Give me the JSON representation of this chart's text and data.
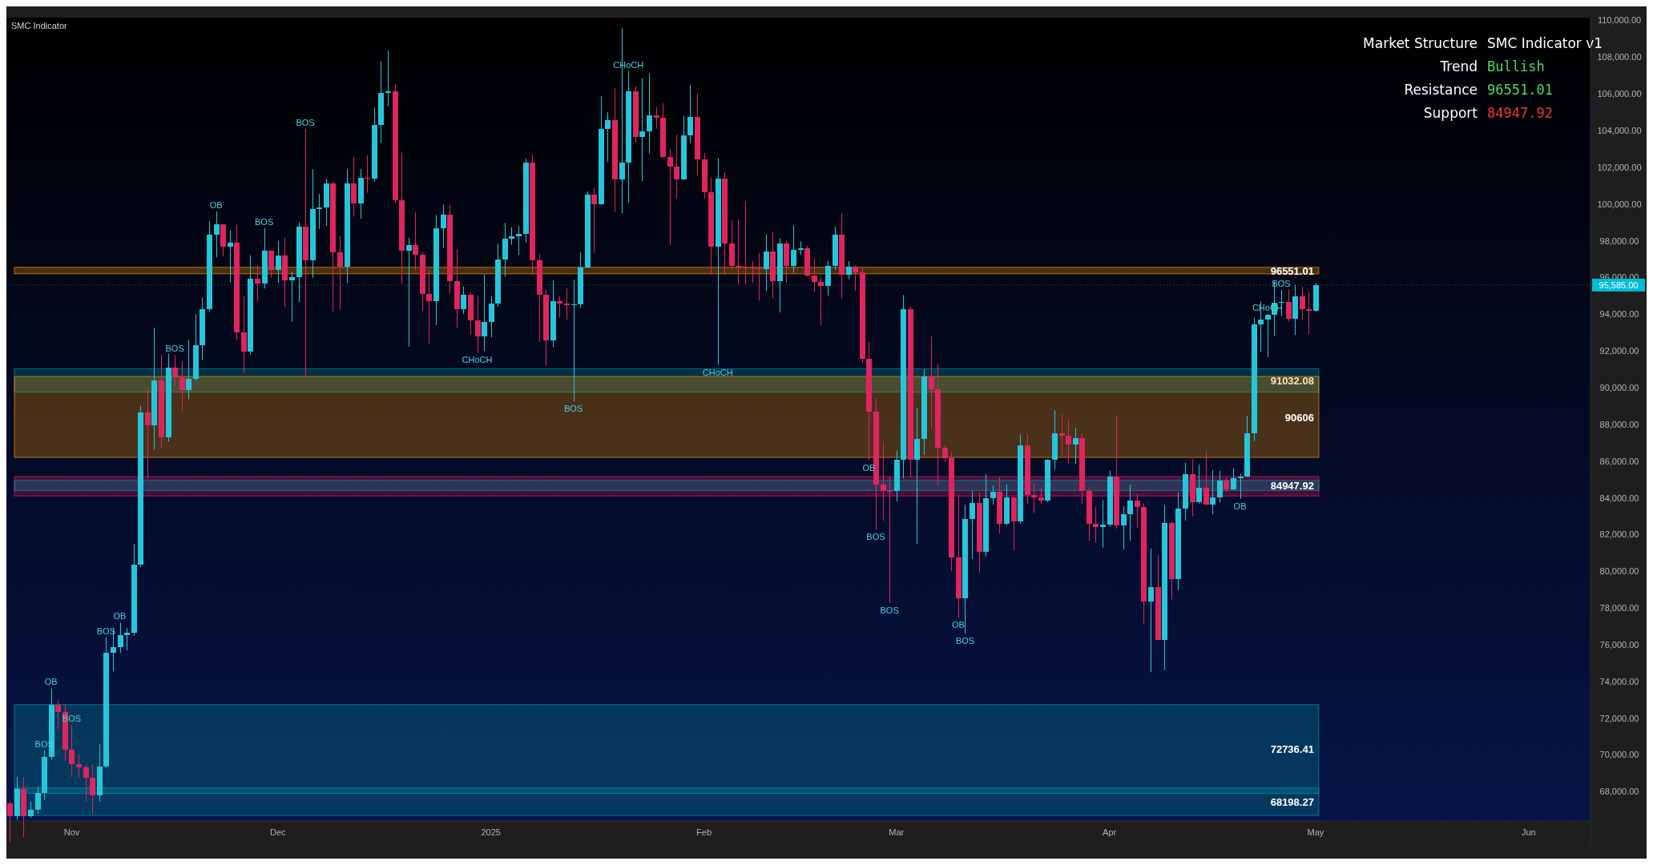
{
  "chart_data": {
    "type": "candlestick",
    "subtitle": "SMC Indicator",
    "x": [
      "2024-10-23",
      "2024-10-24",
      "2024-10-25",
      "2024-10-26",
      "2024-10-27",
      "2024-10-28",
      "2024-10-29",
      "2024-10-30",
      "2024-10-31",
      "2024-11-01",
      "2024-11-02",
      "2024-11-03",
      "2024-11-04",
      "2024-11-05",
      "2024-11-06",
      "2024-11-07",
      "2024-11-08",
      "2024-11-09",
      "2024-11-10",
      "2024-11-11",
      "2024-11-12",
      "2024-11-13",
      "2024-11-14",
      "2024-11-15",
      "2024-11-16",
      "2024-11-17",
      "2024-11-18",
      "2024-11-19",
      "2024-11-20",
      "2024-11-21",
      "2024-11-22",
      "2024-11-23",
      "2024-11-24",
      "2024-11-25",
      "2024-11-26",
      "2024-11-27",
      "2024-11-28",
      "2024-11-29",
      "2024-11-30",
      "2024-12-01",
      "2024-12-02",
      "2024-12-03",
      "2024-12-04",
      "2024-12-05",
      "2024-12-06",
      "2024-12-07",
      "2024-12-08",
      "2024-12-09",
      "2024-12-10",
      "2024-12-11",
      "2024-12-12",
      "2024-12-13",
      "2024-12-14",
      "2024-12-15",
      "2024-12-16",
      "2024-12-17",
      "2024-12-18",
      "2024-12-19",
      "2024-12-20",
      "2024-12-21",
      "2024-12-22",
      "2024-12-23",
      "2024-12-24",
      "2024-12-25",
      "2024-12-26",
      "2024-12-27",
      "2024-12-28",
      "2024-12-29",
      "2024-12-30",
      "2024-12-31",
      "2025-01-01",
      "2025-01-02",
      "2025-01-03",
      "2025-01-04",
      "2025-01-05",
      "2025-01-06",
      "2025-01-07",
      "2025-01-08",
      "2025-01-09",
      "2025-01-10",
      "2025-01-11",
      "2025-01-12",
      "2025-01-13",
      "2025-01-14",
      "2025-01-15",
      "2025-01-16",
      "2025-01-17",
      "2025-01-18",
      "2025-01-19",
      "2025-01-20",
      "2025-01-21",
      "2025-01-22",
      "2025-01-23",
      "2025-01-24",
      "2025-01-25",
      "2025-01-26",
      "2025-01-27",
      "2025-01-28",
      "2025-01-29",
      "2025-01-30",
      "2025-01-31",
      "2025-02-01",
      "2025-02-02",
      "2025-02-03",
      "2025-02-04",
      "2025-02-05",
      "2025-02-06",
      "2025-02-07",
      "2025-02-08",
      "2025-02-09",
      "2025-02-10",
      "2025-02-11",
      "2025-02-12",
      "2025-02-13",
      "2025-02-14",
      "2025-02-15",
      "2025-02-16",
      "2025-02-17",
      "2025-02-18",
      "2025-02-19",
      "2025-02-20",
      "2025-02-21",
      "2025-02-22",
      "2025-02-23",
      "2025-02-24",
      "2025-02-25",
      "2025-02-26",
      "2025-02-27",
      "2025-02-28",
      "2025-03-01",
      "2025-03-02",
      "2025-03-03",
      "2025-03-04",
      "2025-03-05",
      "2025-03-06",
      "2025-03-07",
      "2025-03-08",
      "2025-03-09",
      "2025-03-10",
      "2025-03-11",
      "2025-03-12",
      "2025-03-13",
      "2025-03-14",
      "2025-03-15",
      "2025-03-16",
      "2025-03-17",
      "2025-03-18",
      "2025-03-19",
      "2025-03-20",
      "2025-03-21",
      "2025-03-22",
      "2025-03-23",
      "2025-03-24",
      "2025-03-25",
      "2025-03-26",
      "2025-03-27",
      "2025-03-28",
      "2025-03-29",
      "2025-03-30",
      "2025-03-31",
      "2025-04-01",
      "2025-04-02",
      "2025-04-03",
      "2025-04-04",
      "2025-04-05",
      "2025-04-06",
      "2025-04-07",
      "2025-04-08",
      "2025-04-09",
      "2025-04-10",
      "2025-04-11",
      "2025-04-12",
      "2025-04-13",
      "2025-04-14",
      "2025-04-15",
      "2025-04-16",
      "2025-04-17",
      "2025-04-18",
      "2025-04-19",
      "2025-04-20",
      "2025-04-21",
      "2025-04-22",
      "2025-04-23",
      "2025-04-24",
      "2025-04-25",
      "2025-04-26",
      "2025-04-27",
      "2025-04-28",
      "2025-04-29",
      "2025-04-30",
      "2025-05-01"
    ],
    "ohlc": [
      [
        67380,
        67470,
        65260,
        66650
      ],
      [
        66650,
        68800,
        66450,
        68160
      ],
      [
        68160,
        68770,
        65520,
        66640
      ],
      [
        66640,
        67450,
        66580,
        67010
      ],
      [
        67010,
        68300,
        66800,
        67930
      ],
      [
        67930,
        70250,
        67560,
        69910
      ],
      [
        69910,
        73620,
        69730,
        72720
      ],
      [
        72720,
        72980,
        71400,
        72340
      ],
      [
        72340,
        72750,
        69680,
        70280
      ],
      [
        70280,
        71630,
        68800,
        69480
      ],
      [
        69480,
        70000,
        68790,
        69330
      ],
      [
        69330,
        69450,
        67460,
        68740
      ],
      [
        68740,
        69480,
        66830,
        67800
      ],
      [
        67800,
        70580,
        67460,
        69370
      ],
      [
        69370,
        76400,
        69300,
        75570
      ],
      [
        75570,
        76850,
        74550,
        75860
      ],
      [
        75860,
        77200,
        75560,
        76510
      ],
      [
        76510,
        76900,
        75700,
        76670
      ],
      [
        76670,
        81500,
        76490,
        80370
      ],
      [
        80370,
        89000,
        80220,
        88650
      ],
      [
        88650,
        89950,
        85080,
        87950
      ],
      [
        87950,
        93270,
        86620,
        90380
      ],
      [
        90380,
        91790,
        86670,
        87300
      ],
      [
        87300,
        91850,
        87070,
        91070
      ],
      [
        91070,
        91780,
        90060,
        90610
      ],
      [
        90610,
        91440,
        88720,
        89850
      ],
      [
        89850,
        92590,
        89380,
        90460
      ],
      [
        90460,
        94000,
        90380,
        92300
      ],
      [
        92300,
        94900,
        91500,
        94290
      ],
      [
        94290,
        99070,
        94140,
        98350
      ],
      [
        98350,
        99590,
        97100,
        98890
      ],
      [
        98890,
        98890,
        97150,
        97670
      ],
      [
        97670,
        98560,
        95730,
        97900
      ],
      [
        97900,
        98870,
        92600,
        93010
      ],
      [
        93010,
        94970,
        90790,
        91970
      ],
      [
        91970,
        97210,
        91800,
        95950
      ],
      [
        95950,
        96650,
        94690,
        95650
      ],
      [
        95650,
        98690,
        95400,
        97460
      ],
      [
        97460,
        97470,
        96000,
        96410
      ],
      [
        96410,
        98000,
        95700,
        97190
      ],
      [
        97190,
        98170,
        94390,
        95840
      ],
      [
        95840,
        96300,
        93580,
        96000
      ],
      [
        96000,
        99000,
        94660,
        98770
      ],
      [
        98770,
        104090,
        90500,
        96940
      ],
      [
        96940,
        101900,
        95980,
        99740
      ],
      [
        99740,
        100550,
        98650,
        99830
      ],
      [
        99830,
        101350,
        98800,
        101110
      ],
      [
        101110,
        101220,
        94150,
        97360
      ],
      [
        97360,
        98270,
        94260,
        96590
      ],
      [
        96590,
        101890,
        95680,
        101120
      ],
      [
        101120,
        102540,
        99310,
        100040
      ],
      [
        100040,
        101900,
        99200,
        101420
      ],
      [
        101420,
        102650,
        100610,
        101370
      ],
      [
        101370,
        105250,
        101230,
        104300
      ],
      [
        104300,
        107780,
        103330,
        106060
      ],
      [
        106060,
        108350,
        105320,
        106140
      ],
      [
        106140,
        106520,
        100000,
        100200
      ],
      [
        100200,
        102800,
        95670,
        97460
      ],
      [
        97460,
        98150,
        92230,
        97760
      ],
      [
        97760,
        99540,
        96400,
        97220
      ],
      [
        97220,
        97400,
        94200,
        95100
      ],
      [
        95100,
        96420,
        92400,
        94690
      ],
      [
        94690,
        99400,
        93400,
        98680
      ],
      [
        98680,
        99960,
        97600,
        99430
      ],
      [
        99430,
        99960,
        95140,
        95790
      ],
      [
        95790,
        97540,
        93260,
        94290
      ],
      [
        94290,
        95520,
        94010,
        95060
      ],
      [
        95060,
        95200,
        92880,
        93660
      ],
      [
        93660,
        95000,
        91900,
        92790
      ],
      [
        92790,
        96160,
        92000,
        93580
      ],
      [
        93580,
        95000,
        92740,
        94590
      ],
      [
        94590,
        97840,
        94400,
        96980
      ],
      [
        96980,
        98980,
        96050,
        98130
      ],
      [
        98130,
        98730,
        97780,
        98240
      ],
      [
        98240,
        98800,
        97240,
        98360
      ],
      [
        98360,
        102480,
        97900,
        102240
      ],
      [
        102240,
        102720,
        96130,
        96950
      ],
      [
        96950,
        97260,
        92500,
        95040
      ],
      [
        95040,
        95350,
        91200,
        92550
      ],
      [
        92550,
        95840,
        92200,
        94700
      ],
      [
        94700,
        94980,
        93830,
        94570
      ],
      [
        94570,
        95400,
        93700,
        94500
      ],
      [
        94500,
        95880,
        89260,
        94520
      ],
      [
        94520,
        97370,
        94340,
        96530
      ],
      [
        96530,
        100680,
        96500,
        100500
      ],
      [
        100500,
        100870,
        97330,
        99990
      ],
      [
        99990,
        105870,
        99950,
        104080
      ],
      [
        104080,
        104990,
        102280,
        104560
      ],
      [
        104560,
        106320,
        99580,
        101330
      ],
      [
        101330,
        109590,
        99500,
        102260
      ],
      [
        102260,
        107240,
        100080,
        106140
      ],
      [
        106140,
        106400,
        103320,
        103650
      ],
      [
        103650,
        106850,
        101250,
        103960
      ],
      [
        103960,
        107120,
        102750,
        104820
      ],
      [
        104820,
        105280,
        104100,
        104710
      ],
      [
        104710,
        105500,
        102520,
        102580
      ],
      [
        102580,
        103000,
        97780,
        102050
      ],
      [
        102050,
        103780,
        100270,
        101330
      ],
      [
        101330,
        104800,
        101330,
        103730
      ],
      [
        103730,
        106460,
        103300,
        104730
      ],
      [
        104730,
        106010,
        101560,
        102430
      ],
      [
        102430,
        102780,
        100280,
        100640
      ],
      [
        100640,
        101460,
        96150,
        97690
      ],
      [
        97690,
        102500,
        91230,
        101400
      ],
      [
        101400,
        101730,
        96150,
        97870
      ],
      [
        97870,
        99100,
        96400,
        96620
      ],
      [
        96620,
        99150,
        95650,
        96550
      ],
      [
        96550,
        100140,
        95620,
        96530
      ],
      [
        96530,
        96880,
        95690,
        96480
      ],
      [
        96480,
        97320,
        94740,
        96470
      ],
      [
        96470,
        98340,
        95260,
        97430
      ],
      [
        97430,
        98500,
        94860,
        95780
      ],
      [
        95780,
        98120,
        94090,
        97870
      ],
      [
        97870,
        98000,
        95700,
        96610
      ],
      [
        96610,
        98830,
        96250,
        97510
      ],
      [
        97510,
        97970,
        97230,
        97570
      ],
      [
        97570,
        97730,
        96050,
        96120
      ],
      [
        96120,
        97040,
        95210,
        95770
      ],
      [
        95770,
        96000,
        93390,
        95540
      ],
      [
        95540,
        96900,
        95010,
        96630
      ],
      [
        96630,
        98760,
        96410,
        98330
      ],
      [
        98330,
        99500,
        94870,
        96130
      ],
      [
        96130,
        96890,
        95900,
        96580
      ],
      [
        96580,
        96650,
        95270,
        96270
      ],
      [
        96270,
        96500,
        91360,
        91550
      ],
      [
        91550,
        92480,
        86050,
        88700
      ],
      [
        88700,
        89400,
        82260,
        84700
      ],
      [
        84700,
        87080,
        82750,
        84380
      ],
      [
        84380,
        85120,
        78260,
        84350
      ],
      [
        84350,
        86560,
        83800,
        86060
      ],
      [
        86060,
        95040,
        85050,
        94270
      ],
      [
        94270,
        94420,
        85120,
        86070
      ],
      [
        86070,
        88910,
        81500,
        87220
      ],
      [
        87220,
        91000,
        86340,
        90600
      ],
      [
        90600,
        92800,
        87800,
        89930
      ],
      [
        89930,
        91280,
        84670,
        86740
      ],
      [
        86740,
        86850,
        85960,
        86150
      ],
      [
        86150,
        86500,
        80000,
        80730
      ],
      [
        80730,
        84120,
        77460,
        78530
      ],
      [
        78530,
        83620,
        76610,
        82860
      ],
      [
        82860,
        84360,
        80670,
        83720
      ],
      [
        83720,
        84300,
        79930,
        81070
      ],
      [
        81070,
        85300,
        80790,
        83980
      ],
      [
        83980,
        84670,
        83630,
        84340
      ],
      [
        84340,
        85120,
        82030,
        82580
      ],
      [
        82580,
        84730,
        82490,
        84010
      ],
      [
        84010,
        84050,
        81130,
        82720
      ],
      [
        82720,
        87450,
        82600,
        86850
      ],
      [
        86850,
        87450,
        83650,
        84170
      ],
      [
        84170,
        84780,
        83170,
        84040
      ],
      [
        84040,
        84530,
        83650,
        83830
      ],
      [
        83830,
        86090,
        83770,
        86080
      ],
      [
        86080,
        88770,
        85530,
        87500
      ],
      [
        87500,
        88540,
        86310,
        87390
      ],
      [
        87390,
        88290,
        85860,
        86900
      ],
      [
        86900,
        87790,
        85830,
        87230
      ],
      [
        87230,
        87500,
        83650,
        84350
      ],
      [
        84350,
        84580,
        81650,
        82600
      ],
      [
        82600,
        83500,
        81560,
        82390
      ],
      [
        82390,
        83870,
        81290,
        82550
      ],
      [
        82550,
        85490,
        82430,
        85160
      ],
      [
        85160,
        88500,
        82320,
        82500
      ],
      [
        82500,
        83540,
        81180,
        83100
      ],
      [
        83100,
        84720,
        81660,
        83840
      ],
      [
        83840,
        84230,
        82370,
        83500
      ],
      [
        83500,
        83700,
        77150,
        78370
      ],
      [
        78370,
        81240,
        74510,
        79140
      ],
      [
        79140,
        80870,
        76240,
        76270
      ],
      [
        76270,
        83590,
        74620,
        82610
      ],
      [
        82610,
        82700,
        78460,
        79590
      ],
      [
        79590,
        84300,
        78970,
        83400
      ],
      [
        83400,
        85900,
        82750,
        85280
      ],
      [
        85280,
        86100,
        82980,
        83760
      ],
      [
        83760,
        85800,
        83680,
        84540
      ],
      [
        84540,
        86500,
        83600,
        83630
      ],
      [
        83630,
        85500,
        83110,
        84030
      ],
      [
        84030,
        85470,
        83740,
        84940
      ],
      [
        84940,
        85100,
        84330,
        84450
      ],
      [
        84450,
        85600,
        84410,
        85060
      ],
      [
        85060,
        85320,
        83950,
        85170
      ],
      [
        85170,
        88460,
        85140,
        87510
      ],
      [
        87510,
        93820,
        87070,
        93440
      ],
      [
        93440,
        94700,
        91930,
        93690
      ],
      [
        93690,
        94000,
        91660,
        93980
      ],
      [
        93980,
        95770,
        92800,
        94640
      ],
      [
        94640,
        95320,
        93880,
        94650
      ],
      [
        94650,
        95360,
        93600,
        93750
      ],
      [
        93750,
        95600,
        92860,
        94980
      ],
      [
        94980,
        95500,
        93700,
        94280
      ],
      [
        94280,
        95230,
        92900,
        94170
      ],
      [
        94170,
        95700,
        94120,
        95585
      ]
    ],
    "xlim": [
      "2024-10-22T12:00",
      "2025-06-10T00:00"
    ],
    "xticks": [
      {
        "value": "2024-11-01",
        "label": "Nov"
      },
      {
        "value": "2024-12-01",
        "label": "Dec"
      },
      {
        "value": "2025-01-01",
        "label": "2025"
      },
      {
        "value": "2025-02-01",
        "label": "Feb"
      },
      {
        "value": "2025-03-01",
        "label": "Mar"
      },
      {
        "value": "2025-04-01",
        "label": "Apr"
      },
      {
        "value": "2025-05-01",
        "label": "May"
      },
      {
        "value": "2025-06-01",
        "label": "Jun"
      }
    ],
    "ylim": [
      66400,
      110150
    ],
    "yticks": [
      {
        "value": 68000,
        "label": "68,000.00"
      },
      {
        "value": 70000,
        "label": "70,000.00"
      },
      {
        "value": 72000,
        "label": "72,000.00"
      },
      {
        "value": 74000,
        "label": "74,000.00"
      },
      {
        "value": 76000,
        "label": "76,000.00"
      },
      {
        "value": 78000,
        "label": "78,000.00"
      },
      {
        "value": 80000,
        "label": "80,000.00"
      },
      {
        "value": 82000,
        "label": "82,000.00"
      },
      {
        "value": 84000,
        "label": "84,000.00"
      },
      {
        "value": 86000,
        "label": "86,000.00"
      },
      {
        "value": 88000,
        "label": "88,000.00"
      },
      {
        "value": 90000,
        "label": "90,000.00"
      },
      {
        "value": 92000,
        "label": "92,000.00"
      },
      {
        "value": 94000,
        "label": "94,000.00"
      },
      {
        "value": 96000,
        "label": "96,000.00"
      },
      {
        "value": 98000,
        "label": "98,000.00"
      },
      {
        "value": 100000,
        "label": "100,000.00"
      },
      {
        "value": 102000,
        "label": "102,000.00"
      },
      {
        "value": 104000,
        "label": "104,000.00"
      },
      {
        "value": 106000,
        "label": "106,000.00"
      },
      {
        "value": 108000,
        "label": "108,000.00"
      },
      {
        "value": 110000,
        "label": "110,000.00"
      }
    ],
    "bands": [
      {
        "axis": "y",
        "from": 67900,
        "to": 72736.41,
        "label": "72736.41",
        "color": "#0097a7"
      },
      {
        "axis": "y",
        "from": 66700,
        "to": 68198.27,
        "label": "68198.27",
        "color": "#0097a7"
      },
      {
        "axis": "y",
        "from": 89760,
        "to": 91032.08,
        "label": "91032.08",
        "color": "#0097a7"
      },
      {
        "axis": "y",
        "from": 96200,
        "to": 96551.01,
        "label": "96551.01",
        "color": "#ff9800"
      },
      {
        "axis": "y",
        "from": 86200,
        "to": 90606,
        "label": "90606",
        "color": "#ff9800"
      },
      {
        "axis": "y",
        "from": 84100,
        "to": 85150,
        "label": null,
        "color": "#e91e63"
      },
      {
        "axis": "y",
        "from": 84400,
        "to": 84947.92,
        "label": "84947.92",
        "color": "#0097a7"
      }
    ],
    "ref_lines": [
      {
        "axis": "y",
        "value": 95585,
        "label": "95,585.00",
        "color": "#00bcd4"
      }
    ],
    "annotations": [
      "Market Structure",
      "SMC Indicator v1",
      "Trend",
      "Bullish",
      "Resistance",
      "96551.01",
      "Support",
      "84947.92",
      {
        "text": "BOS",
        "x": "2024-10-28",
        "y": 70250
      },
      {
        "text": "BOS",
        "x": "2024-11-01",
        "y": 71630
      },
      {
        "text": "OB",
        "x": "2024-10-29",
        "y": 73620
      },
      {
        "text": "OB",
        "x": "2024-11-08",
        "y": 77200
      },
      {
        "text": "BOS",
        "x": "2024-11-06",
        "y": 76400
      },
      {
        "text": "BOS",
        "x": "2024-11-16",
        "y": 91780
      },
      {
        "text": "OB",
        "x": "2024-11-22",
        "y": 99590
      },
      {
        "text": "BOS",
        "x": "2024-11-29",
        "y": 98690
      },
      {
        "text": "BOS",
        "x": "2024-12-05",
        "y": 104090
      },
      {
        "text": "CHoCH",
        "x": "2024-12-30",
        "y": 91900
      },
      {
        "text": "BOS",
        "x": "2025-01-13",
        "y": 89260
      },
      {
        "text": "CHoCH",
        "x": "2025-01-21",
        "y": 107240
      },
      {
        "text": "CHoCH",
        "x": "2025-02-03",
        "y": 91230
      },
      {
        "text": "OB",
        "x": "2025-02-25",
        "y": 86050
      },
      {
        "text": "BOS",
        "x": "2025-02-26",
        "y": 82260
      },
      {
        "text": "BOS",
        "x": "2025-02-28",
        "y": 78260
      },
      {
        "text": "OB",
        "x": "2025-03-10",
        "y": 77460
      },
      {
        "text": "BOS",
        "x": "2025-03-11",
        "y": 76610
      },
      {
        "text": "OB",
        "x": "2025-04-20",
        "y": 83950
      },
      {
        "text": "CHoCH",
        "x": "2025-04-24",
        "y": 94000
      },
      {
        "text": "BOS",
        "x": "2025-04-26",
        "y": 95320
      }
    ]
  }
}
